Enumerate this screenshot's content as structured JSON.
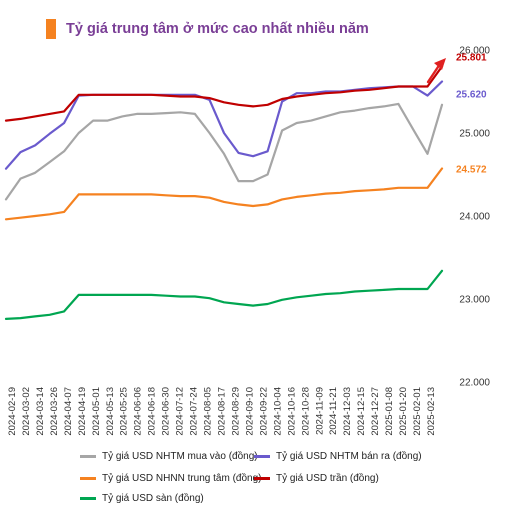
{
  "title": "Tỷ giá trung tâm ở mức cao nhất nhiều năm",
  "colors": {
    "accent": "#F58220",
    "title": "#7A3E96",
    "mua_vao": "#A6A6A6",
    "ban_ra": "#6A5ACD",
    "trung_tam": "#F58220",
    "tran": "#C00000",
    "san": "#00A651",
    "arrow": "#E02020"
  },
  "chart_data": {
    "type": "line",
    "title": "Tỷ giá trung tâm ở mức cao nhất nhiều năm",
    "xlabel": "",
    "ylabel": "",
    "ylim": [
      22000,
      26000
    ],
    "yticks": [
      "26.000",
      "25.000",
      "24.000",
      "23.000",
      "22.000"
    ],
    "grid": false,
    "legend_position": "bottom",
    "categories": [
      "2024-02-19",
      "2024-03-02",
      "2024-03-14",
      "2024-03-26",
      "2024-04-07",
      "2024-04-19",
      "2024-05-01",
      "2024-05-13",
      "2024-05-25",
      "2024-06-06",
      "2024-06-18",
      "2024-06-30",
      "2024-07-12",
      "2024-07-24",
      "2024-08-05",
      "2024-08-17",
      "2024-08-29",
      "2024-09-10",
      "2024-09-22",
      "2024-10-04",
      "2024-10-16",
      "2024-10-28",
      "2024-11-09",
      "2024-11-21",
      "2024-12-03",
      "2024-12-15",
      "2024-12-27",
      "2025-01-08",
      "2025-01-20",
      "2025-02-01",
      "2025-02-13"
    ],
    "series": [
      {
        "name": "Tỷ giá USD NHTM mua vào (đồng)",
        "color": "#A6A6A6",
        "values": [
          24200,
          24450,
          24520,
          24650,
          24780,
          25000,
          25150,
          25150,
          25200,
          25230,
          25230,
          25240,
          25250,
          25230,
          25000,
          24750,
          24420,
          24420,
          24500,
          25030,
          25120,
          25150,
          25200,
          25250,
          25270,
          25300,
          25320,
          25350,
          25050,
          24750,
          25340
        ]
      },
      {
        "name": "Tỷ giá USD NHTM bán ra (đồng)",
        "color": "#6A5ACD",
        "values": [
          24570,
          24770,
          24850,
          24990,
          25120,
          25450,
          25460,
          25460,
          25460,
          25460,
          25460,
          25460,
          25460,
          25460,
          25400,
          25000,
          24760,
          24720,
          24780,
          25380,
          25480,
          25480,
          25500,
          25500,
          25520,
          25540,
          25550,
          25560,
          25560,
          25450,
          25620
        ]
      },
      {
        "name": "Tỷ giá USD NHNN trung tâm (đồng)",
        "color": "#F58220",
        "values": [
          23960,
          23980,
          24000,
          24020,
          24050,
          24260,
          24260,
          24260,
          24260,
          24260,
          24260,
          24250,
          24240,
          24240,
          24220,
          24170,
          24140,
          24120,
          24140,
          24200,
          24230,
          24250,
          24270,
          24280,
          24300,
          24310,
          24320,
          24340,
          24340,
          24340,
          24572
        ]
      },
      {
        "name": "Tỷ giá USD trần (đồng)",
        "color": "#C00000",
        "values": [
          25150,
          25170,
          25200,
          25230,
          25260,
          25460,
          25460,
          25460,
          25460,
          25460,
          25460,
          25450,
          25440,
          25440,
          25420,
          25370,
          25340,
          25320,
          25340,
          25410,
          25440,
          25460,
          25480,
          25490,
          25510,
          25520,
          25540,
          25560,
          25560,
          25560,
          25801
        ]
      },
      {
        "name": "Tỷ giá USD sàn (đồng)",
        "color": "#00A651",
        "values": [
          22760,
          22770,
          22790,
          22810,
          22850,
          23050,
          23050,
          23050,
          23050,
          23050,
          23050,
          23040,
          23030,
          23030,
          23010,
          22960,
          22940,
          22920,
          22940,
          22990,
          23020,
          23040,
          23060,
          23070,
          23090,
          23100,
          23110,
          23120,
          23120,
          23120,
          23340
        ]
      }
    ],
    "annotations": [
      {
        "series": 3,
        "label": "25.801"
      },
      {
        "series": 1,
        "label": "25.620"
      },
      {
        "series": 2,
        "label": "24.572"
      }
    ]
  },
  "legend": [
    {
      "label": "Tỷ giá USD NHTM mua vào (đồng)",
      "color": "#A6A6A6"
    },
    {
      "label": "Tỷ giá USD NHTM bán ra (đồng)",
      "color": "#6A5ACD"
    },
    {
      "label": "Tỷ giá USD NHNN trung tâm (đồng)",
      "color": "#F58220"
    },
    {
      "label": "Tỷ giá USD trần (đồng)",
      "color": "#C00000"
    },
    {
      "label": "Tỷ giá USD sàn (đồng)",
      "color": "#00A651"
    }
  ]
}
